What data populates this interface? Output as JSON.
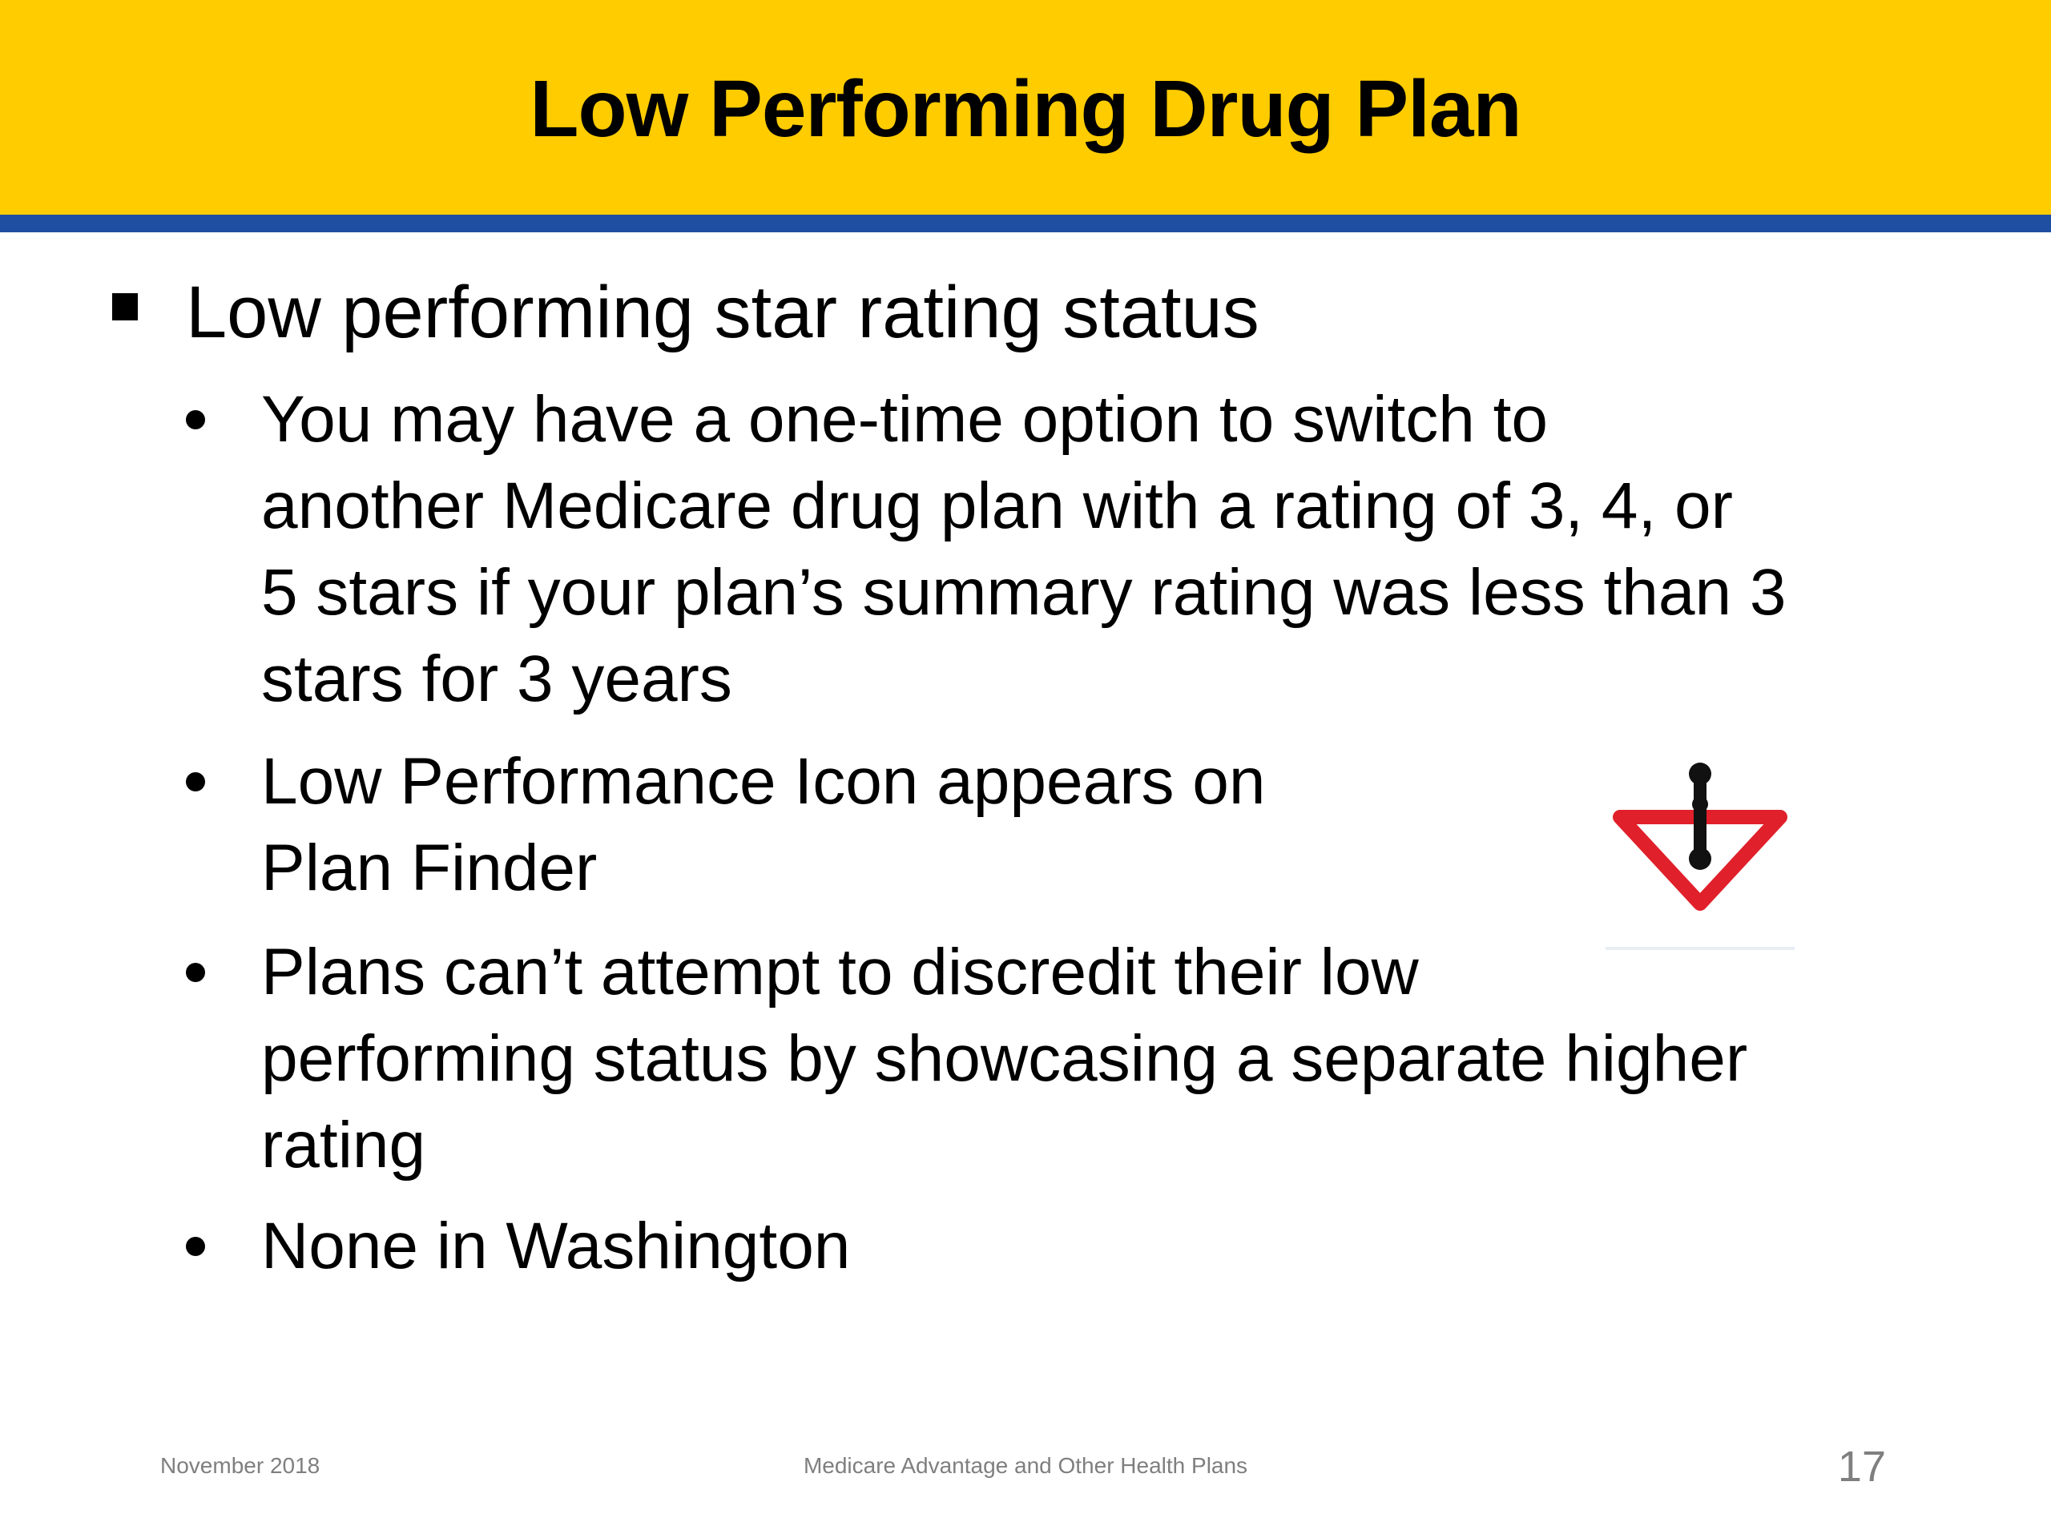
{
  "slide": {
    "title": "Low Performing Drug Plan",
    "main_bullet": "Low performing star rating status",
    "sub_bullets": [
      "You may have a one-time option to switch to\nanother Medicare drug plan with a rating of 3, 4, or\n5 stars if your plan’s summary rating was less than 3\nstars for 3 years",
      "Low Performance Icon appears on\nPlan Finder",
      "Plans can’t attempt to discredit their low\nperforming status by showcasing a separate higher\nrating",
      "None in Washington"
    ],
    "icon": "low-performance-warning-icon"
  },
  "footer": {
    "date": "November 2018",
    "center": "Medicare Advantage and Other Health Plans",
    "page_number": "17"
  },
  "colors": {
    "title_band": "#FFCC00",
    "title_rule": "#1F4FA0",
    "icon_red": "#E0202A",
    "footer_gray": "#7f7f7f"
  }
}
